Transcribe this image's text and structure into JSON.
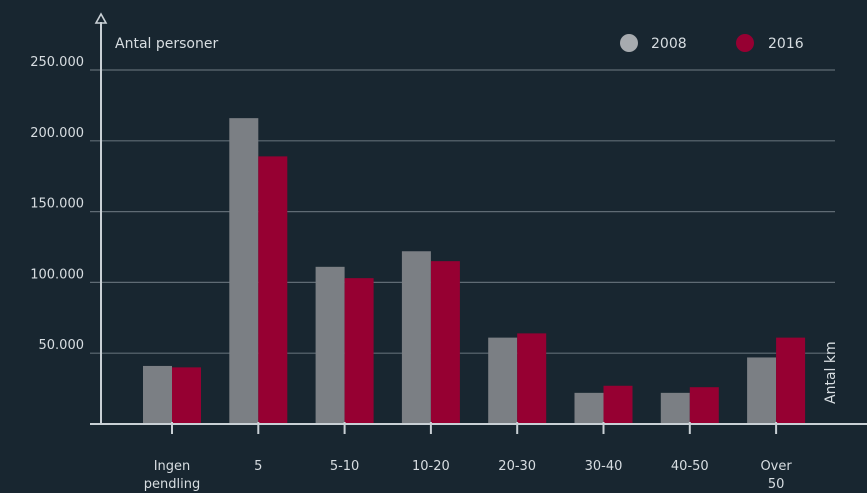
{
  "chart_data": {
    "type": "bar",
    "ylabel": "Antal personer",
    "xlabel": "Antal km",
    "ylim": [
      0,
      250000
    ],
    "y_ticks": [
      50000,
      100000,
      150000,
      200000,
      250000
    ],
    "y_tick_labels": [
      "50.000",
      "100.000",
      "150.000",
      "200.000",
      "250.000"
    ],
    "grid": true,
    "legend_position": "top-right",
    "categories": [
      "Ingen pendling",
      "5",
      "5-10",
      "10-20",
      "20-30",
      "30-40",
      "40-50",
      "Over 50"
    ],
    "category_label_lines": [
      [
        "Ingen",
        "pendling"
      ],
      [
        "5"
      ],
      [
        "5-10"
      ],
      [
        "10-20"
      ],
      [
        "20-30"
      ],
      [
        "30-40"
      ],
      [
        "40-50"
      ],
      [
        "Over",
        "50"
      ]
    ],
    "series": [
      {
        "name": "2008",
        "color": "#7b7f84",
        "values": [
          41000,
          216000,
          111000,
          122000,
          61000,
          22000,
          22000,
          47000
        ]
      },
      {
        "name": "2016",
        "color": "#960032",
        "values": [
          40000,
          189000,
          103000,
          115000,
          64000,
          27000,
          26000,
          61000
        ]
      }
    ]
  },
  "colors": {
    "background": "#182630",
    "axis": "#c9d0d5",
    "grid": "#5f6b74",
    "legend_2008_dot": "#a7abaf",
    "legend_2016_dot": "#960032"
  }
}
